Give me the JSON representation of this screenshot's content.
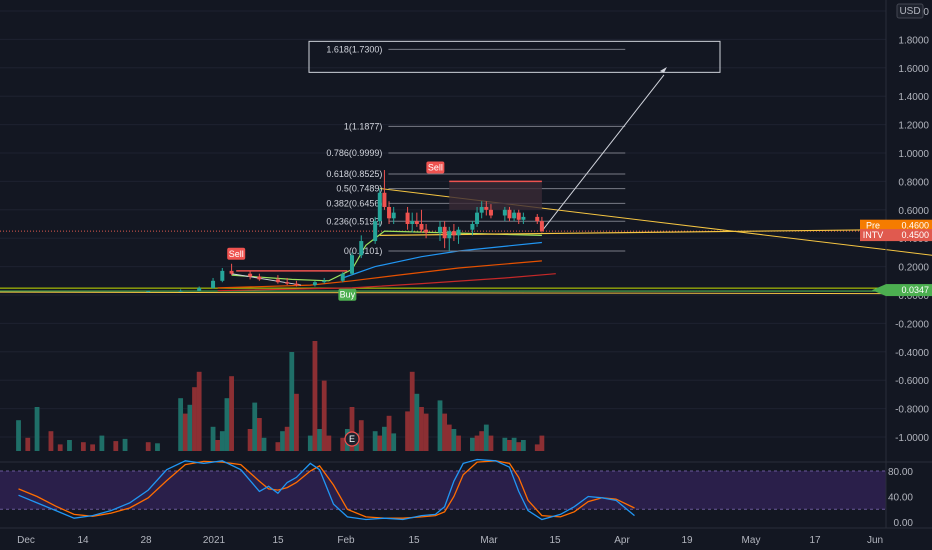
{
  "chart_data": {
    "type": "candlestick",
    "currency": "USD",
    "colors": {
      "background": "#131722",
      "up": "#26a69a",
      "down": "#ef5350",
      "volume_up": "#1f6f68",
      "volume_down": "#8c2f33",
      "fib": "#787b86",
      "trend": "#f5c542",
      "stoch_k": "#2196f3",
      "stoch_d": "#ff6d00",
      "stoch_band": "#2a1f4a",
      "price_line": "#e05a4f"
    },
    "price_axis": {
      "ticks": [
        "2.0000",
        "1.8000",
        "1.6000",
        "1.4000",
        "1.2000",
        "1.0000",
        "0.8000",
        "0.6000",
        "0.4000",
        "0.2000",
        "0.0000",
        "-0.2000",
        "-0.4000",
        "-0.6000",
        "-0.8000",
        "-1.0000"
      ],
      "range": [
        -1.1,
        2.08
      ]
    },
    "stoch_axis": {
      "ticks": [
        "80.00",
        "40.00",
        "0.00"
      ],
      "range": [
        0,
        100
      ]
    },
    "time_axis": [
      "Dec",
      "14",
      "28",
      "2021",
      "15",
      "Feb",
      "15",
      "Mar",
      "15",
      "Apr",
      "19",
      "May",
      "17",
      "Jun"
    ],
    "price_labels": [
      {
        "name": "Pre",
        "value": "0.4600",
        "price": 0.46,
        "color": "#f57c00"
      },
      {
        "name": "INTV",
        "value": "0.4500",
        "price": 0.45,
        "color": "#e05a4f"
      },
      {
        "name": "",
        "value": "0.0347",
        "price": 0.0347,
        "color": "#4caf50"
      }
    ],
    "fib_levels": [
      {
        "label": "0(0.3101)",
        "value": 0.3101
      },
      {
        "label": "0.236(0.5192)",
        "value": 0.5192
      },
      {
        "label": "0.382(0.6456)",
        "value": 0.6456
      },
      {
        "label": "0.5(0.7489)",
        "value": 0.7489
      },
      {
        "label": "0.618(0.8525)",
        "value": 0.8525
      },
      {
        "label": "0.786(0.9999)",
        "value": 0.9999
      },
      {
        "label": "1(1.1877)",
        "value": 1.1877
      },
      {
        "label": "1.618(1.7300)",
        "value": 1.73
      }
    ],
    "signals": [
      {
        "type": "sell",
        "label": "Sell",
        "date": "2021-01-16",
        "price": 0.22
      },
      {
        "type": "buy",
        "label": "Buy",
        "date": "2021-02-09",
        "price": 0.03
      },
      {
        "type": "sell",
        "label": "Sell",
        "date": "2021-02-28",
        "price": 0.8
      }
    ],
    "earnings_marker": {
      "label": "E",
      "date": "2021-02-10"
    },
    "candles": [
      {
        "date": "2020-12-28",
        "o": 0.025,
        "h": 0.03,
        "l": 0.02,
        "c": 0.028
      },
      {
        "date": "2021-01-04",
        "o": 0.028,
        "h": 0.04,
        "l": 0.025,
        "c": 0.03
      },
      {
        "date": "2021-01-08",
        "o": 0.03,
        "h": 0.06,
        "l": 0.028,
        "c": 0.05
      },
      {
        "date": "2021-01-11",
        "o": 0.05,
        "h": 0.12,
        "l": 0.045,
        "c": 0.1
      },
      {
        "date": "2021-01-13",
        "o": 0.1,
        "h": 0.19,
        "l": 0.09,
        "c": 0.17
      },
      {
        "date": "2021-01-15",
        "o": 0.17,
        "h": 0.22,
        "l": 0.14,
        "c": 0.15
      },
      {
        "date": "2021-01-19",
        "o": 0.15,
        "h": 0.17,
        "l": 0.11,
        "c": 0.13
      },
      {
        "date": "2021-01-21",
        "o": 0.13,
        "h": 0.15,
        "l": 0.1,
        "c": 0.11
      },
      {
        "date": "2021-01-25",
        "o": 0.11,
        "h": 0.14,
        "l": 0.08,
        "c": 0.09
      },
      {
        "date": "2021-01-27",
        "o": 0.09,
        "h": 0.12,
        "l": 0.07,
        "c": 0.08
      },
      {
        "date": "2021-01-29",
        "o": 0.08,
        "h": 0.1,
        "l": 0.06,
        "c": 0.07
      },
      {
        "date": "2021-02-02",
        "o": 0.07,
        "h": 0.1,
        "l": 0.06,
        "c": 0.09
      },
      {
        "date": "2021-02-04",
        "o": 0.09,
        "h": 0.12,
        "l": 0.08,
        "c": 0.1
      },
      {
        "date": "2021-02-08",
        "o": 0.1,
        "h": 0.16,
        "l": 0.09,
        "c": 0.15
      },
      {
        "date": "2021-02-10",
        "o": 0.15,
        "h": 0.3,
        "l": 0.14,
        "c": 0.28
      },
      {
        "date": "2021-02-12",
        "o": 0.28,
        "h": 0.42,
        "l": 0.26,
        "c": 0.38
      },
      {
        "date": "2021-02-15",
        "o": 0.38,
        "h": 0.55,
        "l": 0.36,
        "c": 0.52
      },
      {
        "date": "2021-02-16",
        "o": 0.52,
        "h": 0.75,
        "l": 0.48,
        "c": 0.72
      },
      {
        "date": "2021-02-17",
        "o": 0.72,
        "h": 0.88,
        "l": 0.6,
        "c": 0.62
      },
      {
        "date": "2021-02-18",
        "o": 0.62,
        "h": 0.66,
        "l": 0.5,
        "c": 0.54
      },
      {
        "date": "2021-02-19",
        "o": 0.54,
        "h": 0.62,
        "l": 0.5,
        "c": 0.58
      },
      {
        "date": "2021-02-22",
        "o": 0.58,
        "h": 0.62,
        "l": 0.46,
        "c": 0.5
      },
      {
        "date": "2021-02-23",
        "o": 0.5,
        "h": 0.58,
        "l": 0.44,
        "c": 0.52
      },
      {
        "date": "2021-02-24",
        "o": 0.52,
        "h": 0.58,
        "l": 0.48,
        "c": 0.5
      },
      {
        "date": "2021-02-25",
        "o": 0.5,
        "h": 0.6,
        "l": 0.44,
        "c": 0.46
      },
      {
        "date": "2021-02-26",
        "o": 0.46,
        "h": 0.5,
        "l": 0.4,
        "c": 0.44
      },
      {
        "date": "2021-03-01",
        "o": 0.44,
        "h": 0.52,
        "l": 0.38,
        "c": 0.48
      },
      {
        "date": "2021-03-02",
        "o": 0.48,
        "h": 0.52,
        "l": 0.33,
        "c": 0.4
      },
      {
        "date": "2021-03-03",
        "o": 0.4,
        "h": 0.48,
        "l": 0.31,
        "c": 0.45
      },
      {
        "date": "2021-03-04",
        "o": 0.45,
        "h": 0.5,
        "l": 0.38,
        "c": 0.42
      },
      {
        "date": "2021-03-05",
        "o": 0.42,
        "h": 0.48,
        "l": 0.36,
        "c": 0.46
      },
      {
        "date": "2021-03-08",
        "o": 0.46,
        "h": 0.52,
        "l": 0.42,
        "c": 0.5
      },
      {
        "date": "2021-03-09",
        "o": 0.5,
        "h": 0.62,
        "l": 0.48,
        "c": 0.58
      },
      {
        "date": "2021-03-10",
        "o": 0.58,
        "h": 0.66,
        "l": 0.54,
        "c": 0.62
      },
      {
        "date": "2021-03-11",
        "o": 0.62,
        "h": 0.66,
        "l": 0.56,
        "c": 0.6
      },
      {
        "date": "2021-03-12",
        "o": 0.6,
        "h": 0.64,
        "l": 0.54,
        "c": 0.56
      },
      {
        "date": "2021-03-15",
        "o": 0.56,
        "h": 0.62,
        "l": 0.52,
        "c": 0.6
      },
      {
        "date": "2021-03-16",
        "o": 0.6,
        "h": 0.62,
        "l": 0.52,
        "c": 0.54
      },
      {
        "date": "2021-03-17",
        "o": 0.54,
        "h": 0.6,
        "l": 0.52,
        "c": 0.58
      },
      {
        "date": "2021-03-18",
        "o": 0.58,
        "h": 0.6,
        "l": 0.5,
        "c": 0.53
      },
      {
        "date": "2021-03-19",
        "o": 0.53,
        "h": 0.58,
        "l": 0.5,
        "c": 0.55
      },
      {
        "date": "2021-03-22",
        "o": 0.55,
        "h": 0.57,
        "l": 0.5,
        "c": 0.52
      },
      {
        "date": "2021-03-23",
        "o": 0.52,
        "h": 0.55,
        "l": 0.44,
        "c": 0.45
      }
    ],
    "volume": [
      {
        "date": "2020-11-30",
        "v": 0.28,
        "up": true
      },
      {
        "date": "2020-12-02",
        "v": 0.12,
        "up": false
      },
      {
        "date": "2020-12-04",
        "v": 0.4,
        "up": true
      },
      {
        "date": "2020-12-07",
        "v": 0.18,
        "up": false
      },
      {
        "date": "2020-12-09",
        "v": 0.06,
        "up": false
      },
      {
        "date": "2020-12-11",
        "v": 0.1,
        "up": true
      },
      {
        "date": "2020-12-14",
        "v": 0.08,
        "up": false
      },
      {
        "date": "2020-12-16",
        "v": 0.06,
        "up": false
      },
      {
        "date": "2020-12-18",
        "v": 0.14,
        "up": true
      },
      {
        "date": "2020-12-21",
        "v": 0.09,
        "up": false
      },
      {
        "date": "2020-12-23",
        "v": 0.11,
        "up": true
      },
      {
        "date": "2020-12-28",
        "v": 0.08,
        "up": false
      },
      {
        "date": "2020-12-30",
        "v": 0.07,
        "up": true
      },
      {
        "date": "2021-01-04",
        "v": 0.48,
        "up": true
      },
      {
        "date": "2021-01-05",
        "v": 0.34,
        "up": false
      },
      {
        "date": "2021-01-06",
        "v": 0.42,
        "up": true
      },
      {
        "date": "2021-01-07",
        "v": 0.58,
        "up": false
      },
      {
        "date": "2021-01-08",
        "v": 0.72,
        "up": false
      },
      {
        "date": "2021-01-11",
        "v": 0.22,
        "up": true
      },
      {
        "date": "2021-01-12",
        "v": 0.1,
        "up": false
      },
      {
        "date": "2021-01-13",
        "v": 0.18,
        "up": true
      },
      {
        "date": "2021-01-14",
        "v": 0.48,
        "up": true
      },
      {
        "date": "2021-01-15",
        "v": 0.68,
        "up": false
      },
      {
        "date": "2021-01-19",
        "v": 0.2,
        "up": false
      },
      {
        "date": "2021-01-20",
        "v": 0.44,
        "up": true
      },
      {
        "date": "2021-01-21",
        "v": 0.3,
        "up": false
      },
      {
        "date": "2021-01-22",
        "v": 0.12,
        "up": true
      },
      {
        "date": "2021-01-25",
        "v": 0.08,
        "up": false
      },
      {
        "date": "2021-01-26",
        "v": 0.18,
        "up": true
      },
      {
        "date": "2021-01-27",
        "v": 0.22,
        "up": false
      },
      {
        "date": "2021-01-28",
        "v": 0.9,
        "up": true
      },
      {
        "date": "2021-01-29",
        "v": 0.52,
        "up": false
      },
      {
        "date": "2021-02-01",
        "v": 0.14,
        "up": true
      },
      {
        "date": "2021-02-02",
        "v": 1.0,
        "up": false
      },
      {
        "date": "2021-02-03",
        "v": 0.2,
        "up": true
      },
      {
        "date": "2021-02-04",
        "v": 0.64,
        "up": false
      },
      {
        "date": "2021-02-05",
        "v": 0.14,
        "up": false
      },
      {
        "date": "2021-02-08",
        "v": 0.12,
        "up": false
      },
      {
        "date": "2021-02-09",
        "v": 0.2,
        "up": true
      },
      {
        "date": "2021-02-10",
        "v": 0.4,
        "up": false
      },
      {
        "date": "2021-02-11",
        "v": 0.16,
        "up": true
      },
      {
        "date": "2021-02-12",
        "v": 0.28,
        "up": false
      },
      {
        "date": "2021-02-15",
        "v": 0.18,
        "up": true
      },
      {
        "date": "2021-02-16",
        "v": 0.14,
        "up": false
      },
      {
        "date": "2021-02-17",
        "v": 0.22,
        "up": true
      },
      {
        "date": "2021-02-18",
        "v": 0.32,
        "up": false
      },
      {
        "date": "2021-02-19",
        "v": 0.16,
        "up": true
      },
      {
        "date": "2021-02-22",
        "v": 0.36,
        "up": false
      },
      {
        "date": "2021-02-23",
        "v": 0.72,
        "up": false
      },
      {
        "date": "2021-02-24",
        "v": 0.52,
        "up": true
      },
      {
        "date": "2021-02-25",
        "v": 0.4,
        "up": false
      },
      {
        "date": "2021-02-26",
        "v": 0.34,
        "up": false
      },
      {
        "date": "2021-03-01",
        "v": 0.46,
        "up": true
      },
      {
        "date": "2021-03-02",
        "v": 0.34,
        "up": false
      },
      {
        "date": "2021-03-03",
        "v": 0.24,
        "up": false
      },
      {
        "date": "2021-03-04",
        "v": 0.2,
        "up": true
      },
      {
        "date": "2021-03-05",
        "v": 0.14,
        "up": false
      },
      {
        "date": "2021-03-08",
        "v": 0.12,
        "up": true
      },
      {
        "date": "2021-03-09",
        "v": 0.14,
        "up": false
      },
      {
        "date": "2021-03-10",
        "v": 0.18,
        "up": false
      },
      {
        "date": "2021-03-11",
        "v": 0.24,
        "up": true
      },
      {
        "date": "2021-03-12",
        "v": 0.14,
        "up": false
      },
      {
        "date": "2021-03-15",
        "v": 0.12,
        "up": true
      },
      {
        "date": "2021-03-16",
        "v": 0.1,
        "up": false
      },
      {
        "date": "2021-03-17",
        "v": 0.12,
        "up": true
      },
      {
        "date": "2021-03-18",
        "v": 0.08,
        "up": false
      },
      {
        "date": "2021-03-19",
        "v": 0.1,
        "up": true
      },
      {
        "date": "2021-03-22",
        "v": 0.06,
        "up": false
      },
      {
        "date": "2021-03-23",
        "v": 0.14,
        "up": false
      }
    ],
    "stoch_k": [
      {
        "date": "2020-11-30",
        "v": 42
      },
      {
        "date": "2020-12-04",
        "v": 30
      },
      {
        "date": "2020-12-08",
        "v": 18
      },
      {
        "date": "2020-12-12",
        "v": 6
      },
      {
        "date": "2020-12-16",
        "v": 10
      },
      {
        "date": "2020-12-20",
        "v": 18
      },
      {
        "date": "2020-12-24",
        "v": 30
      },
      {
        "date": "2020-12-28",
        "v": 50
      },
      {
        "date": "2021-01-01",
        "v": 82
      },
      {
        "date": "2021-01-05",
        "v": 96
      },
      {
        "date": "2021-01-09",
        "v": 92
      },
      {
        "date": "2021-01-13",
        "v": 96
      },
      {
        "date": "2021-01-17",
        "v": 82
      },
      {
        "date": "2021-01-21",
        "v": 48
      },
      {
        "date": "2021-01-23",
        "v": 56
      },
      {
        "date": "2021-01-25",
        "v": 45
      },
      {
        "date": "2021-01-27",
        "v": 62
      },
      {
        "date": "2021-01-29",
        "v": 70
      },
      {
        "date": "2021-02-01",
        "v": 92
      },
      {
        "date": "2021-02-03",
        "v": 82
      },
      {
        "date": "2021-02-06",
        "v": 28
      },
      {
        "date": "2021-02-09",
        "v": 8
      },
      {
        "date": "2021-02-13",
        "v": 4
      },
      {
        "date": "2021-02-17",
        "v": 6
      },
      {
        "date": "2021-02-21",
        "v": 4
      },
      {
        "date": "2021-02-25",
        "v": 10
      },
      {
        "date": "2021-02-28",
        "v": 12
      },
      {
        "date": "2021-03-02",
        "v": 24
      },
      {
        "date": "2021-03-04",
        "v": 64
      },
      {
        "date": "2021-03-06",
        "v": 92
      },
      {
        "date": "2021-03-09",
        "v": 98
      },
      {
        "date": "2021-03-13",
        "v": 96
      },
      {
        "date": "2021-03-16",
        "v": 86
      },
      {
        "date": "2021-03-18",
        "v": 48
      },
      {
        "date": "2021-03-20",
        "v": 18
      },
      {
        "date": "2021-03-23",
        "v": 4
      },
      {
        "date": "2021-03-27",
        "v": 12
      },
      {
        "date": "2021-03-30",
        "v": 24
      },
      {
        "date": "2021-04-02",
        "v": 40
      },
      {
        "date": "2021-04-05",
        "v": 38
      },
      {
        "date": "2021-04-08",
        "v": 34
      },
      {
        "date": "2021-04-12",
        "v": 10
      }
    ],
    "stoch_d": [
      {
        "date": "2020-11-30",
        "v": 52
      },
      {
        "date": "2020-12-04",
        "v": 40
      },
      {
        "date": "2020-12-08",
        "v": 25
      },
      {
        "date": "2020-12-12",
        "v": 12
      },
      {
        "date": "2020-12-16",
        "v": 9
      },
      {
        "date": "2020-12-20",
        "v": 14
      },
      {
        "date": "2020-12-24",
        "v": 22
      },
      {
        "date": "2020-12-28",
        "v": 38
      },
      {
        "date": "2021-01-01",
        "v": 65
      },
      {
        "date": "2021-01-05",
        "v": 90
      },
      {
        "date": "2021-01-09",
        "v": 95
      },
      {
        "date": "2021-01-13",
        "v": 94
      },
      {
        "date": "2021-01-17",
        "v": 90
      },
      {
        "date": "2021-01-21",
        "v": 64
      },
      {
        "date": "2021-01-23",
        "v": 52
      },
      {
        "date": "2021-01-25",
        "v": 50
      },
      {
        "date": "2021-01-27",
        "v": 54
      },
      {
        "date": "2021-01-29",
        "v": 62
      },
      {
        "date": "2021-02-01",
        "v": 80
      },
      {
        "date": "2021-02-03",
        "v": 88
      },
      {
        "date": "2021-02-06",
        "v": 58
      },
      {
        "date": "2021-02-09",
        "v": 20
      },
      {
        "date": "2021-02-13",
        "v": 8
      },
      {
        "date": "2021-02-17",
        "v": 6
      },
      {
        "date": "2021-02-21",
        "v": 6
      },
      {
        "date": "2021-02-25",
        "v": 8
      },
      {
        "date": "2021-02-28",
        "v": 10
      },
      {
        "date": "2021-03-02",
        "v": 16
      },
      {
        "date": "2021-03-04",
        "v": 40
      },
      {
        "date": "2021-03-06",
        "v": 74
      },
      {
        "date": "2021-03-09",
        "v": 94
      },
      {
        "date": "2021-03-13",
        "v": 96
      },
      {
        "date": "2021-03-16",
        "v": 92
      },
      {
        "date": "2021-03-18",
        "v": 70
      },
      {
        "date": "2021-03-20",
        "v": 34
      },
      {
        "date": "2021-03-23",
        "v": 10
      },
      {
        "date": "2021-03-27",
        "v": 8
      },
      {
        "date": "2021-03-30",
        "v": 16
      },
      {
        "date": "2021-04-02",
        "v": 32
      },
      {
        "date": "2021-04-05",
        "v": 38
      },
      {
        "date": "2021-04-08",
        "v": 36
      },
      {
        "date": "2021-04-12",
        "v": 22
      }
    ]
  }
}
